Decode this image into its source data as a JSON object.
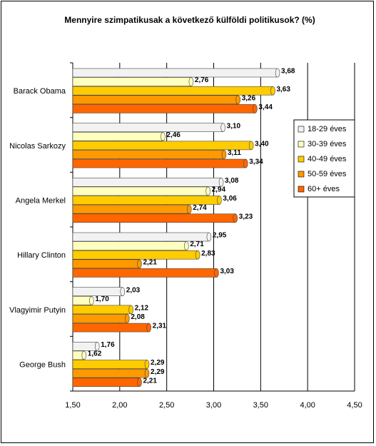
{
  "chart_data": {
    "type": "bar",
    "orientation": "horizontal",
    "title": "Mennyire szimpatikusak a következő külföldi politikusok?  (%)",
    "categories": [
      "Barack Obama",
      "Nicolas Sarkozy",
      "Angela Merkel",
      "Hillary Clinton",
      "Vlagyimir Putyin",
      "George Bush"
    ],
    "series": [
      {
        "name": "18-29 éves",
        "color": "#f2f2f2",
        "values": [
          3.68,
          3.1,
          3.08,
          2.95,
          2.03,
          1.76
        ],
        "value_labels": [
          "3,68",
          "3,10",
          "3,08",
          "2,95",
          "2,03",
          "1,76"
        ]
      },
      {
        "name": "30-39 éves",
        "color": "#ffffc0",
        "values": [
          2.76,
          2.46,
          2.94,
          2.71,
          1.7,
          1.62
        ],
        "value_labels": [
          "2,76",
          "2,46",
          "2,94",
          "2,71",
          "1,70",
          "1,62"
        ]
      },
      {
        "name": "40-49 éves",
        "color": "#ffcc00",
        "values": [
          3.63,
          3.4,
          3.06,
          2.83,
          2.12,
          2.29
        ],
        "value_labels": [
          "3,63",
          "3,40",
          "3,06",
          "2,83",
          "2,12",
          "2,29"
        ]
      },
      {
        "name": "50-59 éves",
        "color": "#ff9900",
        "values": [
          3.26,
          3.11,
          2.74,
          2.21,
          2.08,
          2.29
        ],
        "value_labels": [
          "3,26",
          "3,11",
          "2,74",
          "2,21",
          "2,08",
          "2,29"
        ]
      },
      {
        "name": "60+ éves",
        "color": "#ff6600",
        "values": [
          3.44,
          3.34,
          3.23,
          3.03,
          2.31,
          2.21
        ],
        "value_labels": [
          "3,44",
          "3,34",
          "3,23",
          "3,03",
          "2,31",
          "2,21"
        ]
      }
    ],
    "xlim": [
      1.5,
      4.5
    ],
    "xticks": [
      {
        "value": 1.5,
        "label": "1,50"
      },
      {
        "value": 2,
        "label": "2,00"
      },
      {
        "value": 2.5,
        "label": "2,50"
      },
      {
        "value": 3,
        "label": "3,00"
      },
      {
        "value": 3.5,
        "label": "3,50"
      },
      {
        "value": 4,
        "label": "4,00"
      },
      {
        "value": 4.5,
        "label": "4,50"
      }
    ],
    "grid": true,
    "legend": "right"
  }
}
